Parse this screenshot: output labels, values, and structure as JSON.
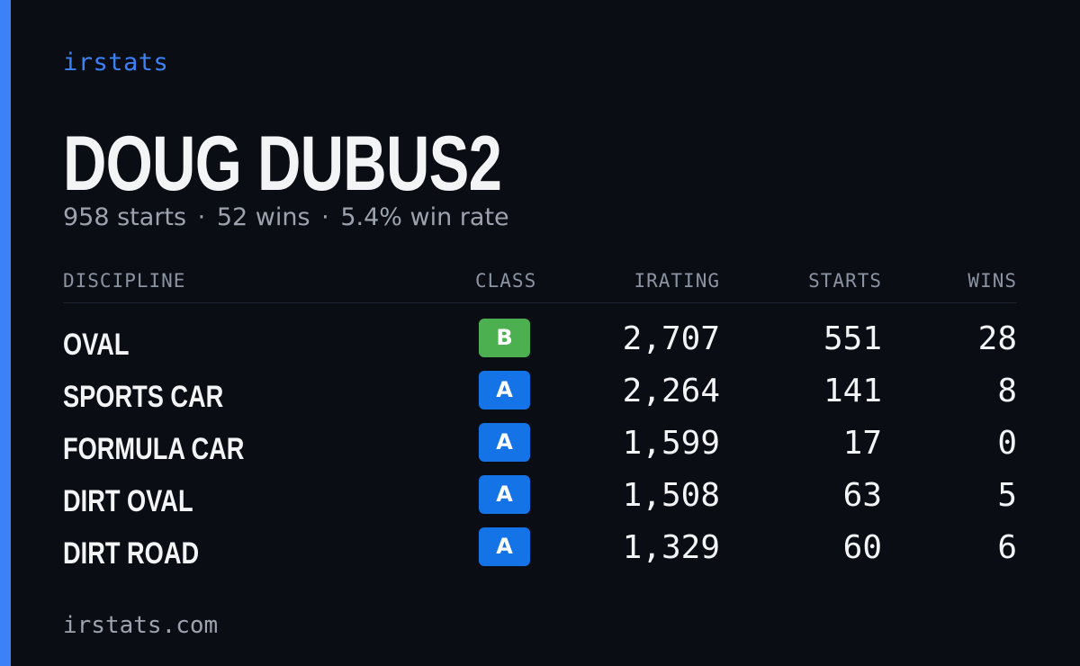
{
  "brand": "irstats",
  "driver": {
    "name": "DOUG DUBUS2"
  },
  "summary": {
    "starts": "958 starts",
    "wins": "52 wins",
    "win_rate": "5.4% win rate",
    "separator": "·"
  },
  "table": {
    "headers": {
      "discipline": "DISCIPLINE",
      "class": "CLASS",
      "irating": "IRATING",
      "starts": "STARTS",
      "wins": "WINS"
    },
    "rows": [
      {
        "discipline": "OVAL",
        "class": "B",
        "class_color": "#4caf50",
        "irating": "2,707",
        "starts": "551",
        "wins": "28"
      },
      {
        "discipline": "SPORTS CAR",
        "class": "A",
        "class_color": "#1473e6",
        "irating": "2,264",
        "starts": "141",
        "wins": "8"
      },
      {
        "discipline": "FORMULA CAR",
        "class": "A",
        "class_color": "#1473e6",
        "irating": "1,599",
        "starts": "17",
        "wins": "0"
      },
      {
        "discipline": "DIRT OVAL",
        "class": "A",
        "class_color": "#1473e6",
        "irating": "1,508",
        "starts": "63",
        "wins": "5"
      },
      {
        "discipline": "DIRT ROAD",
        "class": "A",
        "class_color": "#1473e6",
        "irating": "1,329",
        "starts": "60",
        "wins": "6"
      }
    ]
  },
  "footer": {
    "url": "irstats.com"
  },
  "colors": {
    "accent": "#3b82f6",
    "background": "#0a0d14",
    "class_a": "#1473e6",
    "class_b": "#4caf50"
  }
}
